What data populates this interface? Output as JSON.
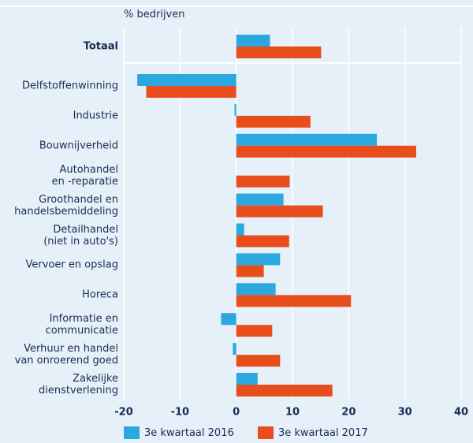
{
  "chart_data": {
    "type": "hbar",
    "y_axis_label": "% bedrijven",
    "categories": [
      "Totaal",
      "Delfstoffenwinning",
      "Industrie",
      "Bouwnijverheid",
      "Autohandel\nen -reparatie",
      "Groothandel en\nhandelsbemiddeling",
      "Detailhandel\n(niet in auto's)",
      "Vervoer en opslag",
      "Horeca",
      "Informatie en\ncommunicatie",
      "Verhuur en handel\nvan onroerend goed",
      "Zakelijke\ndienstverlening"
    ],
    "series": [
      {
        "name": "3e kwartaal 2016",
        "color": "#2aa8df",
        "values": [
          6.0,
          -17.6,
          -0.3,
          25.0,
          0,
          8.4,
          1.4,
          7.8,
          7.0,
          -2.7,
          -0.6,
          3.8
        ]
      },
      {
        "name": "3e kwartaal 2017",
        "color": "#e84e1b",
        "values": [
          15.1,
          -16.0,
          13.2,
          32.0,
          9.5,
          15.4,
          9.4,
          4.9,
          20.4,
          6.4,
          7.8,
          17.1
        ]
      }
    ],
    "xlim": [
      -20,
      40
    ],
    "xticks": [
      -20,
      -10,
      0,
      10,
      20,
      30,
      40
    ],
    "grid": true
  }
}
